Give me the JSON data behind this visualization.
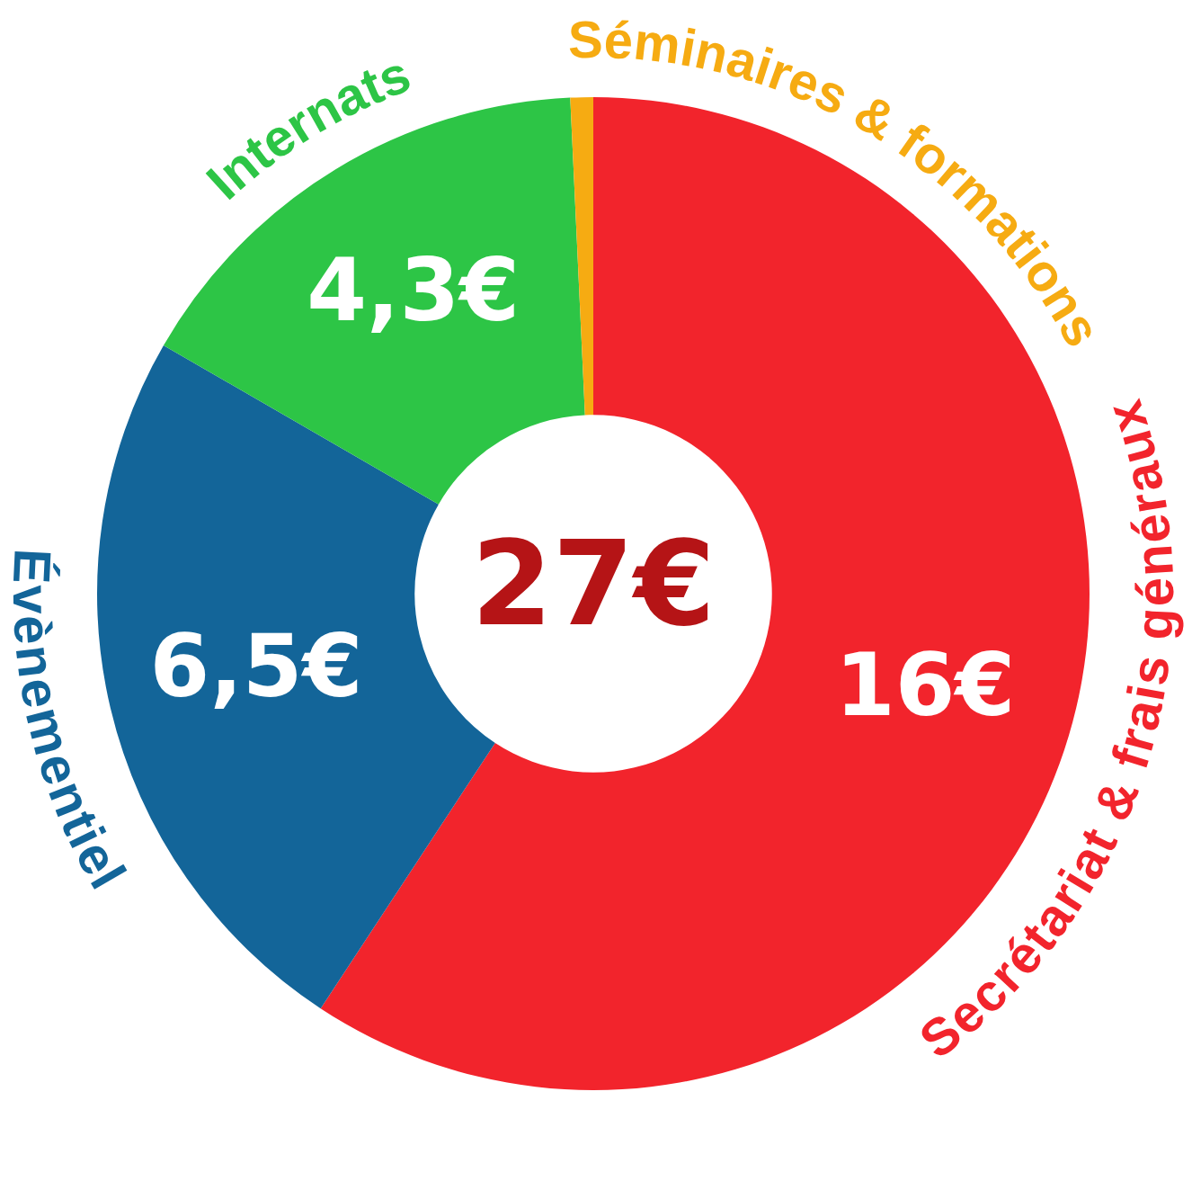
{
  "chart_data": {
    "type": "donut",
    "categories": [
      "Secrétariat & frais généraux",
      "Évènementiel",
      "Internats",
      "Séminaires & formations"
    ],
    "values": [
      16,
      6.5,
      4.3,
      0.2
    ],
    "colors": [
      "#f2242c",
      "#136599",
      "#2dc546",
      "#f6ab12"
    ],
    "value_labels": [
      "16€",
      "6,5€",
      "4,3€",
      null
    ],
    "annotations": [
      "27€"
    ]
  }
}
